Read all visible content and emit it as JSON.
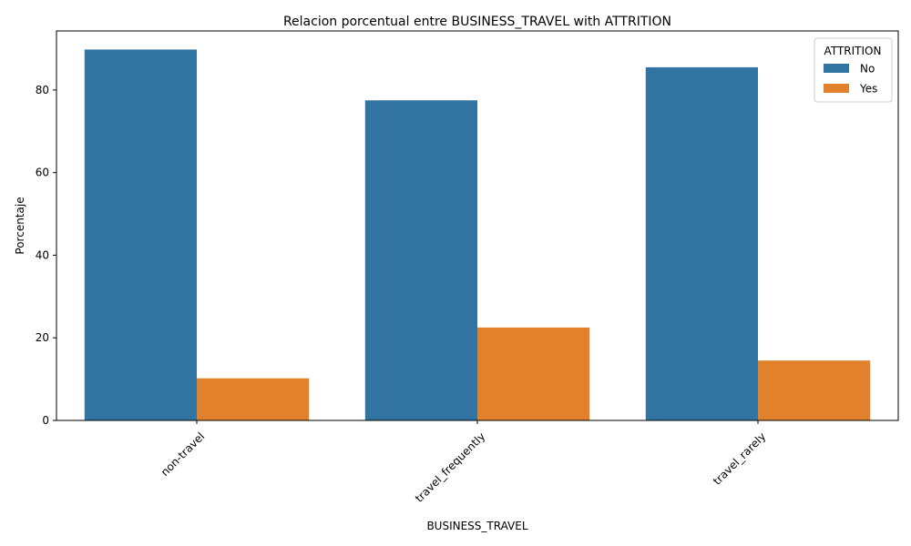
{
  "chart_data": {
    "type": "bar",
    "title": "Relacion porcentual entre BUSINESS_TRAVEL with ATTRITION",
    "xlabel": "BUSINESS_TRAVEL",
    "ylabel": "Porcentaje",
    "categories": [
      "non-travel",
      "travel_frequently",
      "travel_rarely"
    ],
    "series": [
      {
        "name": "No",
        "values": [
          89.8,
          77.5,
          85.5
        ],
        "color": "#3274a1"
      },
      {
        "name": "Yes",
        "values": [
          10.2,
          22.5,
          14.5
        ],
        "color": "#e1812c"
      }
    ],
    "ylim": [
      0,
      94.3
    ],
    "yticks": [
      0,
      20,
      40,
      60,
      80
    ],
    "grid": false,
    "legend": {
      "title": "ATTRITION",
      "placement": "top-right"
    }
  }
}
